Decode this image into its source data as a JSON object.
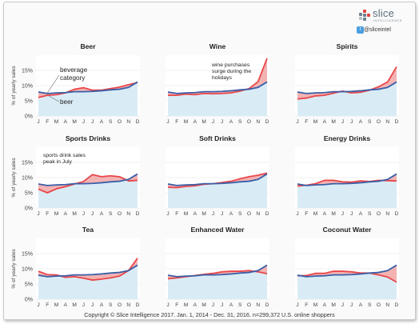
{
  "logo": {
    "name": "slice",
    "sub": "INTELLIGENCE",
    "handle": "@sliceintel",
    "accent": "#e0453f"
  },
  "copyright": "Copyright © Slice Intelligence 2017. Jan. 1, 2014 - Dec. 31, 2016. n=299,372 U.S. online shoppers",
  "colors": {
    "category": "#3a5fa8",
    "beverage": "#e8474a",
    "fill_below": "#d9ecf6",
    "fill_gap": "#f0a0a0"
  },
  "chart_data": [
    {
      "type": "line",
      "title": "Beer",
      "ylabel": "% of yearly sales",
      "x": [
        "J",
        "F",
        "M",
        "A",
        "M",
        "J",
        "J",
        "A",
        "S",
        "O",
        "N",
        "D"
      ],
      "yticks": [
        "0%",
        "5%",
        "10%",
        "15%"
      ],
      "ylim": [
        0,
        20
      ],
      "series": [
        {
          "values": [
            7.9,
            7.4,
            7.6,
            7.7,
            8.0,
            8.0,
            8.1,
            8.3,
            8.6,
            8.8,
            9.4,
            11.2
          ]
        },
        {
          "values": [
            6.1,
            6.8,
            7.0,
            7.6,
            8.8,
            9.3,
            8.5,
            8.5,
            9.0,
            9.5,
            10.3,
            11.0
          ]
        }
      ],
      "annotations": [
        {
          "text": "beverage",
          "line2": "category"
        },
        {
          "text": "beer"
        }
      ]
    },
    {
      "type": "line",
      "title": "Wine",
      "ylabel": "",
      "x": [
        "J",
        "F",
        "M",
        "A",
        "M",
        "J",
        "J",
        "A",
        "S",
        "O",
        "N",
        "D"
      ],
      "yticks": [],
      "ylim": [
        0,
        20
      ],
      "series": [
        {
          "values": [
            7.9,
            7.4,
            7.6,
            7.7,
            8.0,
            8.0,
            8.1,
            8.3,
            8.6,
            8.8,
            9.4,
            11.2
          ]
        },
        {
          "values": [
            6.8,
            6.8,
            7.2,
            7.0,
            7.4,
            7.3,
            7.4,
            7.6,
            8.2,
            9.0,
            11.3,
            19.0
          ]
        }
      ],
      "annotations": [
        {
          "text": "wine purchases",
          "line2": "surge during the",
          "line3": "holidays"
        }
      ]
    },
    {
      "type": "line",
      "title": "Spirits",
      "ylabel": "",
      "x": [
        "J",
        "F",
        "M",
        "A",
        "M",
        "J",
        "J",
        "A",
        "S",
        "O",
        "N",
        "D"
      ],
      "yticks": [],
      "ylim": [
        0,
        20
      ],
      "series": [
        {
          "values": [
            7.9,
            7.4,
            7.6,
            7.7,
            8.0,
            8.0,
            8.1,
            8.3,
            8.6,
            8.8,
            9.4,
            11.2
          ]
        },
        {
          "values": [
            5.6,
            5.9,
            6.6,
            6.8,
            7.5,
            8.2,
            7.6,
            7.8,
            8.5,
            9.6,
            11.2,
            16.2
          ]
        }
      ],
      "annotations": []
    },
    {
      "type": "line",
      "title": "Sports Drinks",
      "ylabel": "% of yearly sales",
      "x": [
        "J",
        "F",
        "M",
        "A",
        "M",
        "J",
        "J",
        "A",
        "S",
        "O",
        "N",
        "D"
      ],
      "yticks": [
        "0%",
        "5%",
        "10%",
        "15%"
      ],
      "ylim": [
        0,
        20
      ],
      "series": [
        {
          "values": [
            7.9,
            7.4,
            7.6,
            7.7,
            8.0,
            8.0,
            8.1,
            8.3,
            8.6,
            8.8,
            9.4,
            11.2
          ]
        },
        {
          "values": [
            6.2,
            5.0,
            6.3,
            7.0,
            7.9,
            8.7,
            11.0,
            10.3,
            10.6,
            10.3,
            8.9,
            9.1
          ]
        }
      ],
      "annotations": [
        {
          "text": "sports drink sales",
          "line2": "peak in July"
        }
      ]
    },
    {
      "type": "line",
      "title": "Soft Drinks",
      "ylabel": "",
      "x": [
        "J",
        "F",
        "M",
        "A",
        "M",
        "J",
        "J",
        "A",
        "S",
        "O",
        "N",
        "D"
      ],
      "yticks": [],
      "ylim": [
        0,
        20
      ],
      "series": [
        {
          "values": [
            7.9,
            7.4,
            7.6,
            7.7,
            8.0,
            8.0,
            8.1,
            8.3,
            8.6,
            8.8,
            9.4,
            11.2
          ]
        },
        {
          "values": [
            6.8,
            6.7,
            7.1,
            7.3,
            7.8,
            8.0,
            8.4,
            8.8,
            9.6,
            10.3,
            10.8,
            11.5
          ]
        }
      ],
      "annotations": []
    },
    {
      "type": "line",
      "title": "Energy Drinks",
      "ylabel": "",
      "x": [
        "J",
        "F",
        "M",
        "A",
        "M",
        "J",
        "J",
        "A",
        "S",
        "O",
        "N",
        "D"
      ],
      "yticks": [],
      "ylim": [
        0,
        20
      ],
      "series": [
        {
          "values": [
            7.9,
            7.4,
            7.6,
            7.7,
            8.0,
            8.0,
            8.1,
            8.3,
            8.6,
            8.8,
            9.4,
            11.2
          ]
        },
        {
          "values": [
            7.2,
            7.5,
            8.0,
            9.1,
            9.1,
            8.6,
            8.5,
            8.9,
            8.7,
            9.1,
            9.0,
            8.9
          ]
        }
      ],
      "annotations": []
    },
    {
      "type": "line",
      "title": "Tea",
      "ylabel": "% of yearly sales",
      "x": [
        "J",
        "F",
        "M",
        "A",
        "M",
        "J",
        "J",
        "A",
        "S",
        "O",
        "N",
        "D"
      ],
      "yticks": [
        "0%",
        "5%",
        "10%",
        "15%"
      ],
      "ylim": [
        0,
        20
      ],
      "series": [
        {
          "values": [
            7.9,
            7.4,
            7.6,
            7.7,
            8.0,
            8.0,
            8.1,
            8.3,
            8.6,
            8.8,
            9.4,
            11.2
          ]
        },
        {
          "values": [
            9.2,
            8.1,
            8.0,
            7.2,
            7.4,
            6.9,
            6.3,
            6.6,
            7.0,
            7.6,
            9.4,
            13.5
          ]
        }
      ],
      "annotations": []
    },
    {
      "type": "line",
      "title": "Enhanced Water",
      "ylabel": "",
      "x": [
        "J",
        "F",
        "M",
        "A",
        "M",
        "J",
        "J",
        "A",
        "S",
        "O",
        "N",
        "D"
      ],
      "yticks": [],
      "ylim": [
        0,
        20
      ],
      "series": [
        {
          "values": [
            7.9,
            7.4,
            7.6,
            7.7,
            8.0,
            8.0,
            8.1,
            8.3,
            8.6,
            8.8,
            9.4,
            11.2
          ]
        },
        {
          "values": [
            6.7,
            7.0,
            7.4,
            7.8,
            8.2,
            8.5,
            9.0,
            9.2,
            9.2,
            9.4,
            9.0,
            8.4
          ]
        }
      ],
      "annotations": []
    },
    {
      "type": "line",
      "title": "Coconut Water",
      "ylabel": "",
      "x": [
        "J",
        "F",
        "M",
        "A",
        "M",
        "J",
        "J",
        "A",
        "S",
        "O",
        "N",
        "D"
      ],
      "yticks": [],
      "ylim": [
        0,
        20
      ],
      "series": [
        {
          "values": [
            7.9,
            7.4,
            7.6,
            7.7,
            8.0,
            8.0,
            8.1,
            8.3,
            8.6,
            8.8,
            9.4,
            11.2
          ]
        },
        {
          "values": [
            7.7,
            7.8,
            8.5,
            8.5,
            9.2,
            9.2,
            9.0,
            8.6,
            8.6,
            8.0,
            7.3,
            5.6
          ]
        }
      ],
      "annotations": []
    }
  ]
}
